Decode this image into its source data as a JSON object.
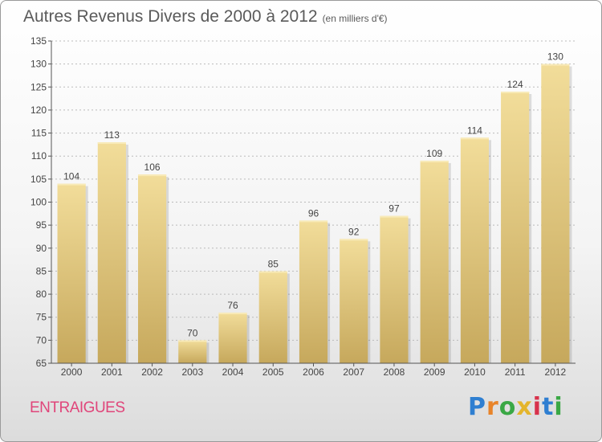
{
  "title": "Autres Revenus Divers de 2000 à 2012",
  "unit": "(en milliers d'€)",
  "commune": "ENTRAIGUES",
  "logo": {
    "text": "Proxiti",
    "colors": [
      "#2f7fd1",
      "#e8842a",
      "#3aa845",
      "#e4b52c",
      "#d8324c",
      "#2f7fd1",
      "#3aa845"
    ]
  },
  "colors": {
    "bar_top": "#f2dd9a",
    "bar_bottom": "#c6a85c",
    "axis": "#555555",
    "grid": "#bbbbbb"
  },
  "chart_data": {
    "type": "bar",
    "categories": [
      "2000",
      "2001",
      "2002",
      "2003",
      "2004",
      "2005",
      "2006",
      "2007",
      "2008",
      "2009",
      "2010",
      "2011",
      "2012"
    ],
    "values": [
      104,
      113,
      106,
      70,
      76,
      85,
      96,
      92,
      97,
      109,
      114,
      124,
      130
    ],
    "ylim": [
      65,
      135
    ],
    "yticks": [
      65,
      70,
      75,
      80,
      85,
      90,
      95,
      100,
      105,
      110,
      115,
      120,
      125,
      130,
      135
    ],
    "grid": true,
    "xlabel": "",
    "ylabel": ""
  }
}
